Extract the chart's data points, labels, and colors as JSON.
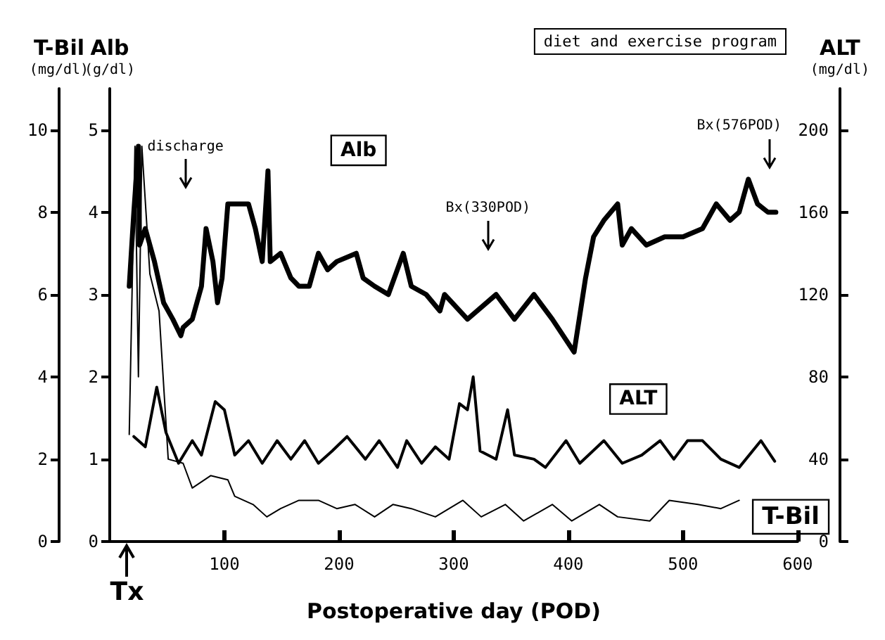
{
  "chart_data": {
    "type": "line",
    "xlabel": "Postoperative day (POD)",
    "ylabel": "Alb\n(g/dl)",
    "y2label": "ALT\n(mg/dl)",
    "y3label": "T-Bil\n(mg/dl)",
    "xlim": [
      0,
      600
    ],
    "xticks": [
      100,
      200,
      300,
      400,
      500,
      600
    ],
    "ylim": [
      0,
      5.5
    ],
    "yticks": [
      0,
      1,
      2,
      3,
      4,
      5
    ],
    "y2lim": [
      0,
      220
    ],
    "y2ticks": [
      0,
      40,
      80,
      120,
      160,
      200
    ],
    "y3lim": [
      0,
      11
    ],
    "y3ticks": [
      0,
      2,
      4,
      6,
      8,
      10
    ],
    "grid": false,
    "legend": false,
    "marker": "none",
    "line_style": "solid",
    "series": [
      {
        "name": "Alb",
        "color": "#000000",
        "axis": "y",
        "x": [
          17,
          21,
          25,
          26,
          31,
          39,
          47,
          55,
          62,
          64,
          72,
          80,
          84,
          90,
          94,
          98,
          103,
          121,
          127,
          133,
          138,
          140,
          149,
          158,
          165,
          174,
          182,
          190,
          198,
          215,
          221,
          231,
          243,
          256,
          263,
          276,
          288,
          292,
          312,
          337,
          353,
          370,
          386,
          405,
          415,
          422,
          431,
          443,
          447,
          455,
          468,
          484,
          500,
          517,
          529,
          541,
          549,
          557,
          565,
          574,
          581
        ],
        "values": [
          3.1,
          4.0,
          4.8,
          3.6,
          3.8,
          3.4,
          2.9,
          2.7,
          2.5,
          2.6,
          2.7,
          3.1,
          3.8,
          3.4,
          2.9,
          3.2,
          4.1,
          4.1,
          3.8,
          3.4,
          4.5,
          3.4,
          3.5,
          3.2,
          3.1,
          3.1,
          3.5,
          3.3,
          3.4,
          3.5,
          3.2,
          3.1,
          3.0,
          3.5,
          3.1,
          3.0,
          2.8,
          3.0,
          2.7,
          3.0,
          2.7,
          3.0,
          2.7,
          2.3,
          3.2,
          3.7,
          3.9,
          4.1,
          3.6,
          3.8,
          3.6,
          3.7,
          3.7,
          3.8,
          4.1,
          3.9,
          4.0,
          4.4,
          4.1,
          4.0,
          4.0
        ]
      },
      {
        "name": "ALT",
        "color": "#000000",
        "axis": "y2",
        "x": [
          21,
          31,
          41,
          49,
          60,
          72,
          80,
          92,
          100,
          109,
          121,
          133,
          146,
          158,
          170,
          182,
          194,
          207,
          223,
          235,
          251,
          259,
          272,
          284,
          296,
          305,
          312,
          317,
          323,
          337,
          347,
          353,
          370,
          380,
          398,
          410,
          431,
          447,
          464,
          480,
          492,
          504,
          517,
          533,
          549,
          568,
          580
        ],
        "values": [
          51,
          46,
          75,
          53,
          38,
          49,
          42,
          68,
          64,
          42,
          49,
          38,
          49,
          40,
          49,
          38,
          44,
          51,
          40,
          49,
          36,
          49,
          38,
          46,
          40,
          67,
          64,
          80,
          44,
          40,
          64,
          42,
          40,
          36,
          49,
          38,
          49,
          38,
          42,
          49,
          40,
          49,
          49,
          40,
          36,
          49,
          39
        ]
      },
      {
        "name": "T-Bil",
        "color": "#000000",
        "axis": "y3",
        "x": [
          17,
          22,
          25,
          28,
          35,
          43,
          51,
          64,
          72,
          88,
          103,
          109,
          125,
          137,
          149,
          165,
          182,
          198,
          214,
          231,
          247,
          263,
          284,
          308,
          324,
          345,
          361,
          386,
          403,
          427,
          443,
          471,
          488,
          513,
          533,
          549
        ],
        "values": [
          2.6,
          9.6,
          4.0,
          9.6,
          6.5,
          5.6,
          2.0,
          1.9,
          1.3,
          1.6,
          1.5,
          1.1,
          0.9,
          0.6,
          0.8,
          1.0,
          1.0,
          0.8,
          0.9,
          0.6,
          0.9,
          0.8,
          0.6,
          1.0,
          0.6,
          0.9,
          0.5,
          0.9,
          0.5,
          0.9,
          0.6,
          0.5,
          1.0,
          0.9,
          0.8,
          1.0
        ]
      }
    ],
    "annotations": [
      "diet and exercise program",
      "discharge",
      "Bx(330POD)",
      "Bx(576POD)",
      "Tx"
    ]
  }
}
